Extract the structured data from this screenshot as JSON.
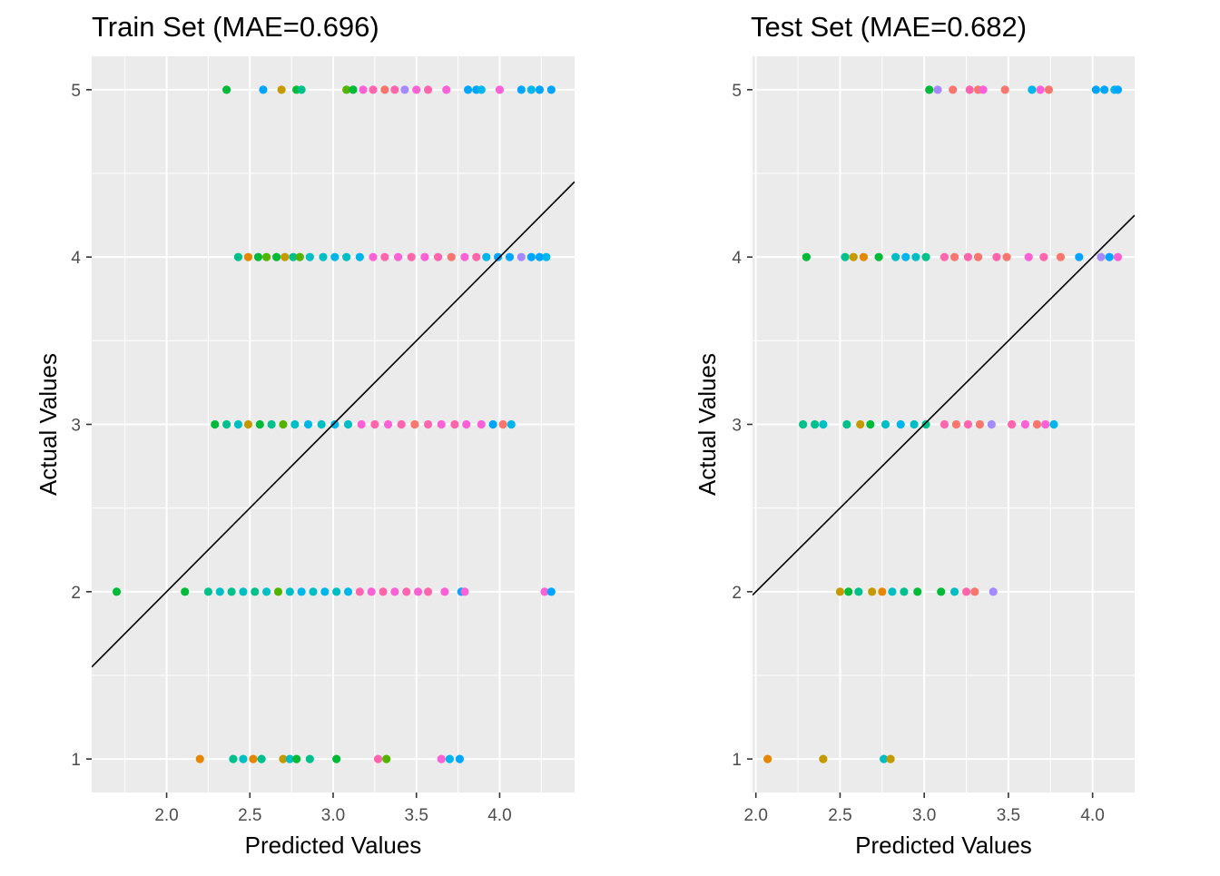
{
  "chart_data": [
    {
      "type": "scatter",
      "title": "Train Set (MAE=0.696)",
      "xlabel": "Predicted Values",
      "ylabel": "Actual Values",
      "xlim": [
        1.55,
        4.45
      ],
      "ylim": [
        0.8,
        5.2
      ],
      "xticks": [
        2.0,
        2.5,
        3.0,
        3.5,
        4.0
      ],
      "xtick_labels": [
        "2.0",
        "2.5",
        "3.0",
        "3.5",
        "4.0"
      ],
      "yticks": [
        1,
        2,
        3,
        4,
        5
      ],
      "ytick_labels": [
        "1",
        "2",
        "3",
        "4",
        "5"
      ],
      "grid": true,
      "panel_background": "#ebebeb",
      "reference_line": {
        "slope": 1,
        "intercept": 0,
        "color": "#000000"
      },
      "points": [
        {
          "x": 2.36,
          "y": 5,
          "color": "#00BA38"
        },
        {
          "x": 2.58,
          "y": 5,
          "color": "#00A5FF"
        },
        {
          "x": 2.69,
          "y": 5,
          "color": "#C49A00"
        },
        {
          "x": 2.78,
          "y": 5,
          "color": "#00BA38"
        },
        {
          "x": 2.81,
          "y": 5,
          "color": "#00C08B"
        },
        {
          "x": 3.08,
          "y": 5,
          "color": "#53B400"
        },
        {
          "x": 3.12,
          "y": 5,
          "color": "#00BA38"
        },
        {
          "x": 3.18,
          "y": 5,
          "color": "#FB61D7"
        },
        {
          "x": 3.24,
          "y": 5,
          "color": "#FF65AC"
        },
        {
          "x": 3.31,
          "y": 5,
          "color": "#F8766D"
        },
        {
          "x": 3.37,
          "y": 5,
          "color": "#FF65AC"
        },
        {
          "x": 3.43,
          "y": 5,
          "color": "#A58AFF"
        },
        {
          "x": 3.5,
          "y": 5,
          "color": "#FB61D7"
        },
        {
          "x": 3.57,
          "y": 5,
          "color": "#FF65AC"
        },
        {
          "x": 3.68,
          "y": 5,
          "color": "#FB61D7"
        },
        {
          "x": 3.81,
          "y": 5,
          "color": "#00A5FF"
        },
        {
          "x": 3.86,
          "y": 5,
          "color": "#00A5FF"
        },
        {
          "x": 3.89,
          "y": 5,
          "color": "#00B6EB"
        },
        {
          "x": 4.0,
          "y": 5,
          "color": "#FB61D7"
        },
        {
          "x": 4.13,
          "y": 5,
          "color": "#00A5FF"
        },
        {
          "x": 4.19,
          "y": 5,
          "color": "#00B6EB"
        },
        {
          "x": 4.24,
          "y": 5,
          "color": "#00A5FF"
        },
        {
          "x": 4.31,
          "y": 5,
          "color": "#00A5FF"
        },
        {
          "x": 2.43,
          "y": 4,
          "color": "#00C08B"
        },
        {
          "x": 2.49,
          "y": 4,
          "color": "#E58700"
        },
        {
          "x": 2.55,
          "y": 4,
          "color": "#00BA38"
        },
        {
          "x": 2.6,
          "y": 4,
          "color": "#53B400"
        },
        {
          "x": 2.66,
          "y": 4,
          "color": "#00BA38"
        },
        {
          "x": 2.71,
          "y": 4,
          "color": "#C49A00"
        },
        {
          "x": 2.76,
          "y": 4,
          "color": "#00C08B"
        },
        {
          "x": 2.8,
          "y": 4,
          "color": "#53B400"
        },
        {
          "x": 2.86,
          "y": 4,
          "color": "#00BFC4"
        },
        {
          "x": 2.94,
          "y": 4,
          "color": "#00BFC4"
        },
        {
          "x": 3.01,
          "y": 4,
          "color": "#00B6EB"
        },
        {
          "x": 3.08,
          "y": 4,
          "color": "#00BFC4"
        },
        {
          "x": 3.16,
          "y": 4,
          "color": "#00B6EB"
        },
        {
          "x": 3.24,
          "y": 4,
          "color": "#FB61D7"
        },
        {
          "x": 3.31,
          "y": 4,
          "color": "#FF65AC"
        },
        {
          "x": 3.39,
          "y": 4,
          "color": "#FB61D7"
        },
        {
          "x": 3.47,
          "y": 4,
          "color": "#FF65AC"
        },
        {
          "x": 3.55,
          "y": 4,
          "color": "#FB61D7"
        },
        {
          "x": 3.63,
          "y": 4,
          "color": "#FF65AC"
        },
        {
          "x": 3.71,
          "y": 4,
          "color": "#F8766D"
        },
        {
          "x": 3.79,
          "y": 4,
          "color": "#FB61D7"
        },
        {
          "x": 3.86,
          "y": 4,
          "color": "#FF65AC"
        },
        {
          "x": 3.92,
          "y": 4,
          "color": "#00B6EB"
        },
        {
          "x": 3.99,
          "y": 4,
          "color": "#00A5FF"
        },
        {
          "x": 4.06,
          "y": 4,
          "color": "#00A5FF"
        },
        {
          "x": 4.13,
          "y": 4,
          "color": "#A58AFF"
        },
        {
          "x": 4.19,
          "y": 4,
          "color": "#00A5FF"
        },
        {
          "x": 4.24,
          "y": 4,
          "color": "#00A5FF"
        },
        {
          "x": 4.28,
          "y": 4,
          "color": "#00B6EB"
        },
        {
          "x": 2.29,
          "y": 3,
          "color": "#00BA38"
        },
        {
          "x": 2.36,
          "y": 3,
          "color": "#00C08B"
        },
        {
          "x": 2.43,
          "y": 3,
          "color": "#00BFC4"
        },
        {
          "x": 2.49,
          "y": 3,
          "color": "#C49A00"
        },
        {
          "x": 2.56,
          "y": 3,
          "color": "#00BA38"
        },
        {
          "x": 2.63,
          "y": 3,
          "color": "#00C08B"
        },
        {
          "x": 2.7,
          "y": 3,
          "color": "#53B400"
        },
        {
          "x": 2.77,
          "y": 3,
          "color": "#00BFC4"
        },
        {
          "x": 2.85,
          "y": 3,
          "color": "#00B6EB"
        },
        {
          "x": 2.93,
          "y": 3,
          "color": "#00BFC4"
        },
        {
          "x": 3.01,
          "y": 3,
          "color": "#00B6EB"
        },
        {
          "x": 3.09,
          "y": 3,
          "color": "#00BFC4"
        },
        {
          "x": 3.17,
          "y": 3,
          "color": "#FB61D7"
        },
        {
          "x": 3.25,
          "y": 3,
          "color": "#FF65AC"
        },
        {
          "x": 3.33,
          "y": 3,
          "color": "#FB61D7"
        },
        {
          "x": 3.41,
          "y": 3,
          "color": "#FF65AC"
        },
        {
          "x": 3.49,
          "y": 3,
          "color": "#F8766D"
        },
        {
          "x": 3.57,
          "y": 3,
          "color": "#FF65AC"
        },
        {
          "x": 3.65,
          "y": 3,
          "color": "#FB61D7"
        },
        {
          "x": 3.73,
          "y": 3,
          "color": "#FF65AC"
        },
        {
          "x": 3.8,
          "y": 3,
          "color": "#FB61D7"
        },
        {
          "x": 3.89,
          "y": 3,
          "color": "#FB61D7"
        },
        {
          "x": 3.96,
          "y": 3,
          "color": "#00A5FF"
        },
        {
          "x": 4.02,
          "y": 3,
          "color": "#F8766D"
        },
        {
          "x": 4.07,
          "y": 3,
          "color": "#00B6EB"
        },
        {
          "x": 1.7,
          "y": 2,
          "color": "#00BA38"
        },
        {
          "x": 2.11,
          "y": 2,
          "color": "#00BA38"
        },
        {
          "x": 2.25,
          "y": 2,
          "color": "#00C08B"
        },
        {
          "x": 2.32,
          "y": 2,
          "color": "#00BFC4"
        },
        {
          "x": 2.39,
          "y": 2,
          "color": "#00C08B"
        },
        {
          "x": 2.46,
          "y": 2,
          "color": "#00BFC4"
        },
        {
          "x": 2.53,
          "y": 2,
          "color": "#00C08B"
        },
        {
          "x": 2.6,
          "y": 2,
          "color": "#00BFC4"
        },
        {
          "x": 2.67,
          "y": 2,
          "color": "#53B400"
        },
        {
          "x": 2.74,
          "y": 2,
          "color": "#00BFC4"
        },
        {
          "x": 2.81,
          "y": 2,
          "color": "#00B6EB"
        },
        {
          "x": 2.88,
          "y": 2,
          "color": "#00BFC4"
        },
        {
          "x": 2.95,
          "y": 2,
          "color": "#00B6EB"
        },
        {
          "x": 3.02,
          "y": 2,
          "color": "#00BFC4"
        },
        {
          "x": 3.09,
          "y": 2,
          "color": "#00B6EB"
        },
        {
          "x": 3.16,
          "y": 2,
          "color": "#FF65AC"
        },
        {
          "x": 3.23,
          "y": 2,
          "color": "#FB61D7"
        },
        {
          "x": 3.3,
          "y": 2,
          "color": "#FF65AC"
        },
        {
          "x": 3.37,
          "y": 2,
          "color": "#FB61D7"
        },
        {
          "x": 3.44,
          "y": 2,
          "color": "#FF65AC"
        },
        {
          "x": 3.51,
          "y": 2,
          "color": "#FB61D7"
        },
        {
          "x": 3.57,
          "y": 2,
          "color": "#FF65AC"
        },
        {
          "x": 3.67,
          "y": 2,
          "color": "#FB61D7"
        },
        {
          "x": 3.77,
          "y": 2,
          "color": "#00A5FF"
        },
        {
          "x": 3.79,
          "y": 2,
          "color": "#FB61D7"
        },
        {
          "x": 4.27,
          "y": 2,
          "color": "#FB61D7"
        },
        {
          "x": 4.31,
          "y": 2,
          "color": "#00A5FF"
        },
        {
          "x": 2.2,
          "y": 1,
          "color": "#E58700"
        },
        {
          "x": 2.4,
          "y": 1,
          "color": "#00C08B"
        },
        {
          "x": 2.46,
          "y": 1,
          "color": "#00BFC4"
        },
        {
          "x": 2.52,
          "y": 1,
          "color": "#E58700"
        },
        {
          "x": 2.57,
          "y": 1,
          "color": "#00C08B"
        },
        {
          "x": 2.7,
          "y": 1,
          "color": "#C49A00"
        },
        {
          "x": 2.74,
          "y": 1,
          "color": "#00BFC4"
        },
        {
          "x": 2.78,
          "y": 1,
          "color": "#00BA38"
        },
        {
          "x": 2.86,
          "y": 1,
          "color": "#00C08B"
        },
        {
          "x": 3.02,
          "y": 1,
          "color": "#00BA38"
        },
        {
          "x": 3.27,
          "y": 1,
          "color": "#FF65AC"
        },
        {
          "x": 3.32,
          "y": 1,
          "color": "#53B400"
        },
        {
          "x": 3.65,
          "y": 1,
          "color": "#FB61D7"
        },
        {
          "x": 3.7,
          "y": 1,
          "color": "#00B6EB"
        },
        {
          "x": 3.76,
          "y": 1,
          "color": "#00A5FF"
        }
      ]
    },
    {
      "type": "scatter",
      "title": "Test Set (MAE=0.682)",
      "xlabel": "Predicted Values",
      "ylabel": "Actual Values",
      "xlim": [
        1.98,
        4.25
      ],
      "ylim": [
        0.8,
        5.2
      ],
      "xticks": [
        2.0,
        2.5,
        3.0,
        3.5,
        4.0
      ],
      "xtick_labels": [
        "2.0",
        "2.5",
        "3.0",
        "3.5",
        "4.0"
      ],
      "yticks": [
        1,
        2,
        3,
        4,
        5
      ],
      "ytick_labels": [
        "1",
        "2",
        "3",
        "4",
        "5"
      ],
      "grid": true,
      "panel_background": "#ebebeb",
      "reference_line": {
        "slope": 1,
        "intercept": 0,
        "color": "#000000"
      },
      "points": [
        {
          "x": 3.03,
          "y": 5,
          "color": "#00BA38"
        },
        {
          "x": 3.08,
          "y": 5,
          "color": "#A58AFF"
        },
        {
          "x": 3.17,
          "y": 5,
          "color": "#F8766D"
        },
        {
          "x": 3.27,
          "y": 5,
          "color": "#FF65AC"
        },
        {
          "x": 3.32,
          "y": 5,
          "color": "#F8766D"
        },
        {
          "x": 3.35,
          "y": 5,
          "color": "#FB61D7"
        },
        {
          "x": 3.48,
          "y": 5,
          "color": "#F8766D"
        },
        {
          "x": 3.64,
          "y": 5,
          "color": "#00B6EB"
        },
        {
          "x": 3.69,
          "y": 5,
          "color": "#FB61D7"
        },
        {
          "x": 3.74,
          "y": 5,
          "color": "#F8766D"
        },
        {
          "x": 4.02,
          "y": 5,
          "color": "#00A5FF"
        },
        {
          "x": 4.07,
          "y": 5,
          "color": "#00A5FF"
        },
        {
          "x": 4.13,
          "y": 5,
          "color": "#00B6EB"
        },
        {
          "x": 4.15,
          "y": 5,
          "color": "#00A5FF"
        },
        {
          "x": 2.3,
          "y": 4,
          "color": "#00BA38"
        },
        {
          "x": 2.53,
          "y": 4,
          "color": "#00C08B"
        },
        {
          "x": 2.58,
          "y": 4,
          "color": "#C49A00"
        },
        {
          "x": 2.64,
          "y": 4,
          "color": "#E58700"
        },
        {
          "x": 2.73,
          "y": 4,
          "color": "#00BA38"
        },
        {
          "x": 2.83,
          "y": 4,
          "color": "#00BFC4"
        },
        {
          "x": 2.89,
          "y": 4,
          "color": "#00B6EB"
        },
        {
          "x": 2.95,
          "y": 4,
          "color": "#00BFC4"
        },
        {
          "x": 3.01,
          "y": 4,
          "color": "#00C08B"
        },
        {
          "x": 3.12,
          "y": 4,
          "color": "#FF65AC"
        },
        {
          "x": 3.18,
          "y": 4,
          "color": "#F8766D"
        },
        {
          "x": 3.26,
          "y": 4,
          "color": "#FF65AC"
        },
        {
          "x": 3.32,
          "y": 4,
          "color": "#F8766D"
        },
        {
          "x": 3.43,
          "y": 4,
          "color": "#FF65AC"
        },
        {
          "x": 3.49,
          "y": 4,
          "color": "#F8766D"
        },
        {
          "x": 3.62,
          "y": 4,
          "color": "#FB61D7"
        },
        {
          "x": 3.71,
          "y": 4,
          "color": "#FF65AC"
        },
        {
          "x": 3.81,
          "y": 4,
          "color": "#F8766D"
        },
        {
          "x": 3.92,
          "y": 4,
          "color": "#00A5FF"
        },
        {
          "x": 4.05,
          "y": 4,
          "color": "#A58AFF"
        },
        {
          "x": 4.1,
          "y": 4,
          "color": "#00A5FF"
        },
        {
          "x": 4.15,
          "y": 4,
          "color": "#FB61D7"
        },
        {
          "x": 2.28,
          "y": 3,
          "color": "#00C08B"
        },
        {
          "x": 2.35,
          "y": 3,
          "color": "#00C08B"
        },
        {
          "x": 2.4,
          "y": 3,
          "color": "#00BFC4"
        },
        {
          "x": 2.54,
          "y": 3,
          "color": "#00C08B"
        },
        {
          "x": 2.62,
          "y": 3,
          "color": "#C49A00"
        },
        {
          "x": 2.68,
          "y": 3,
          "color": "#00BA38"
        },
        {
          "x": 2.77,
          "y": 3,
          "color": "#00BFC4"
        },
        {
          "x": 2.86,
          "y": 3,
          "color": "#00B6EB"
        },
        {
          "x": 2.94,
          "y": 3,
          "color": "#00BFC4"
        },
        {
          "x": 3.01,
          "y": 3,
          "color": "#00C08B"
        },
        {
          "x": 3.12,
          "y": 3,
          "color": "#FF65AC"
        },
        {
          "x": 3.19,
          "y": 3,
          "color": "#F8766D"
        },
        {
          "x": 3.26,
          "y": 3,
          "color": "#FF65AC"
        },
        {
          "x": 3.33,
          "y": 3,
          "color": "#F8766D"
        },
        {
          "x": 3.4,
          "y": 3,
          "color": "#A58AFF"
        },
        {
          "x": 3.52,
          "y": 3,
          "color": "#FF65AC"
        },
        {
          "x": 3.6,
          "y": 3,
          "color": "#FB61D7"
        },
        {
          "x": 3.67,
          "y": 3,
          "color": "#F8766D"
        },
        {
          "x": 3.72,
          "y": 3,
          "color": "#FB61D7"
        },
        {
          "x": 3.77,
          "y": 3,
          "color": "#00B6EB"
        },
        {
          "x": 2.5,
          "y": 2,
          "color": "#C49A00"
        },
        {
          "x": 2.55,
          "y": 2,
          "color": "#00BA38"
        },
        {
          "x": 2.61,
          "y": 2,
          "color": "#00C08B"
        },
        {
          "x": 2.69,
          "y": 2,
          "color": "#C49A00"
        },
        {
          "x": 2.75,
          "y": 2,
          "color": "#E58700"
        },
        {
          "x": 2.81,
          "y": 2,
          "color": "#00BFC4"
        },
        {
          "x": 2.88,
          "y": 2,
          "color": "#00C08B"
        },
        {
          "x": 2.96,
          "y": 2,
          "color": "#00BA38"
        },
        {
          "x": 3.1,
          "y": 2,
          "color": "#00BA38"
        },
        {
          "x": 3.18,
          "y": 2,
          "color": "#00BFC4"
        },
        {
          "x": 3.25,
          "y": 2,
          "color": "#FF65AC"
        },
        {
          "x": 3.3,
          "y": 2,
          "color": "#F8766D"
        },
        {
          "x": 3.41,
          "y": 2,
          "color": "#A58AFF"
        },
        {
          "x": 2.07,
          "y": 1,
          "color": "#E58700"
        },
        {
          "x": 2.4,
          "y": 1,
          "color": "#C49A00"
        },
        {
          "x": 2.76,
          "y": 1,
          "color": "#00BFC4"
        },
        {
          "x": 2.8,
          "y": 1,
          "color": "#C49A00"
        }
      ]
    }
  ]
}
